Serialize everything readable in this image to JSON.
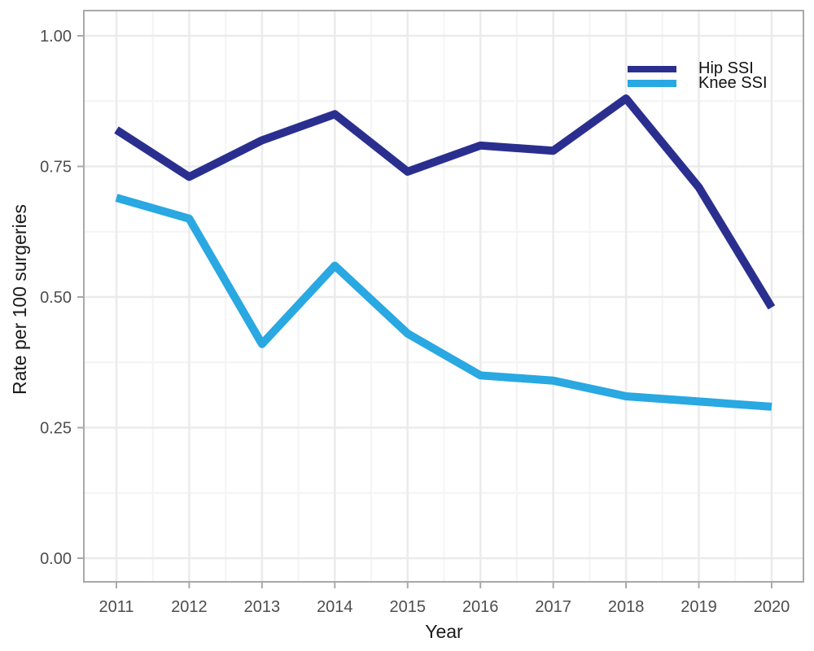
{
  "chart_data": {
    "type": "line",
    "title": "",
    "xlabel": "Year",
    "ylabel": "Rate per 100 surgeries",
    "x": [
      2011,
      2012,
      2013,
      2014,
      2015,
      2016,
      2017,
      2018,
      2019,
      2020
    ],
    "xtick_labels": [
      "2011",
      "2012",
      "2013",
      "2014",
      "2015",
      "2016",
      "2017",
      "2018",
      "2019",
      "2020"
    ],
    "ytick_values": [
      0,
      0.25,
      0.5,
      0.75,
      1.0
    ],
    "ytick_labels": [
      "0.00",
      "0.25",
      "0.50",
      "0.75",
      "1.00"
    ],
    "yminor_values": [
      0.125,
      0.375,
      0.625,
      0.875
    ],
    "ylim": [
      0,
      1
    ],
    "grid": "major+minor",
    "legend_position": "top-right-inside",
    "series": [
      {
        "name": "Hip SSI",
        "color": "#2A2F8F",
        "values": [
          0.82,
          0.73,
          0.8,
          0.85,
          0.74,
          0.79,
          0.78,
          0.88,
          0.71,
          0.48
        ]
      },
      {
        "name": "Knee SSI",
        "color": "#29A8E2",
        "values": [
          0.69,
          0.65,
          0.41,
          0.56,
          0.43,
          0.35,
          0.34,
          0.31,
          0.3,
          0.29
        ]
      }
    ]
  },
  "colors": {
    "background": "#FFFFFF",
    "panel_background": "#FFFFFF",
    "panel_border": "#A9A9A9",
    "grid_major": "#EBEBEB",
    "grid_minor": "#F4F4F4",
    "tick_mark": "#A9A9A9",
    "tick_label": "#4D4D4D",
    "axis_title": "#1A1A1A",
    "legend_text": "#111111"
  }
}
